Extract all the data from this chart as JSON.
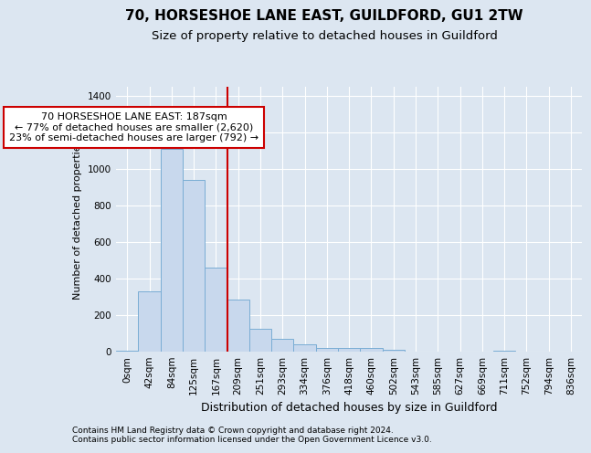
{
  "title1": "70, HORSESHOE LANE EAST, GUILDFORD, GU1 2TW",
  "title2": "Size of property relative to detached houses in Guildford",
  "xlabel": "Distribution of detached houses by size in Guildford",
  "ylabel": "Number of detached properties",
  "bar_labels": [
    "0sqm",
    "42sqm",
    "84sqm",
    "125sqm",
    "167sqm",
    "209sqm",
    "251sqm",
    "293sqm",
    "334sqm",
    "376sqm",
    "418sqm",
    "460sqm",
    "502sqm",
    "543sqm",
    "585sqm",
    "627sqm",
    "669sqm",
    "711sqm",
    "752sqm",
    "794sqm",
    "836sqm"
  ],
  "bar_values": [
    5,
    330,
    1110,
    940,
    460,
    285,
    125,
    68,
    40,
    20,
    20,
    20,
    10,
    0,
    0,
    0,
    0,
    5,
    0,
    0,
    0
  ],
  "bar_color": "#c8d8ed",
  "bar_edge_color": "#7aadd4",
  "vline_color": "#cc0000",
  "annotation_text": "70 HORSESHOE LANE EAST: 187sqm\n← 77% of detached houses are smaller (2,620)\n23% of semi-detached houses are larger (792) →",
  "annotation_box_color": "#ffffff",
  "annotation_box_edge": "#cc0000",
  "ylim": [
    0,
    1450
  ],
  "yticks": [
    0,
    200,
    400,
    600,
    800,
    1000,
    1200,
    1400
  ],
  "bg_color": "#dce6f1",
  "plot_bg_color": "#dce6f1",
  "footer1": "Contains HM Land Registry data © Crown copyright and database right 2024.",
  "footer2": "Contains public sector information licensed under the Open Government Licence v3.0.",
  "title1_fontsize": 11,
  "title2_fontsize": 9.5,
  "xlabel_fontsize": 9,
  "ylabel_fontsize": 8,
  "tick_fontsize": 7.5,
  "annotation_fontsize": 8,
  "footer_fontsize": 6.5
}
